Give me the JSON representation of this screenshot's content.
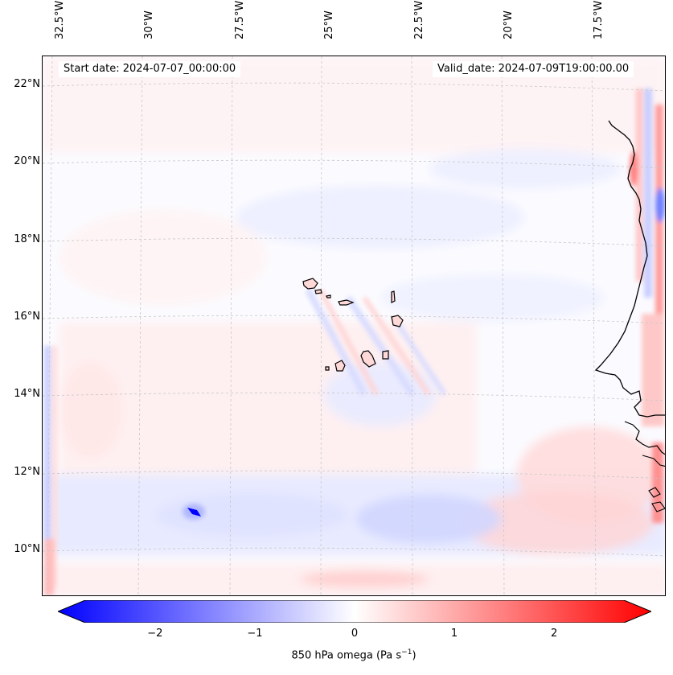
{
  "header": {
    "start_date": "Start date: 2024-07-07_00:00:00",
    "valid_date": "Valid_date: 2024-07-09T19:00:00.00"
  },
  "axes": {
    "longitude_labels": [
      "32.5°W",
      "30°W",
      "27.5°W",
      "25°W",
      "22.5°W",
      "20°W",
      "17.5°W"
    ],
    "latitude_labels": [
      "22°N",
      "20°N",
      "18°N",
      "16°N",
      "14°N",
      "12°N",
      "10°N"
    ]
  },
  "colorbar": {
    "title_prefix": "850 hPa omega (Pa s",
    "title_superscript": "−1",
    "title_suffix": ")",
    "ticks": [
      "−2",
      "−1",
      "0",
      "1",
      "2"
    ],
    "min": -2.7,
    "max": 2.7,
    "negative_color": "#0000ff",
    "zero_color": "#ffffff",
    "positive_color": "#ff0000"
  },
  "map_colors": {
    "coastline": "#000000",
    "gridline": "#c8c8c8"
  }
}
